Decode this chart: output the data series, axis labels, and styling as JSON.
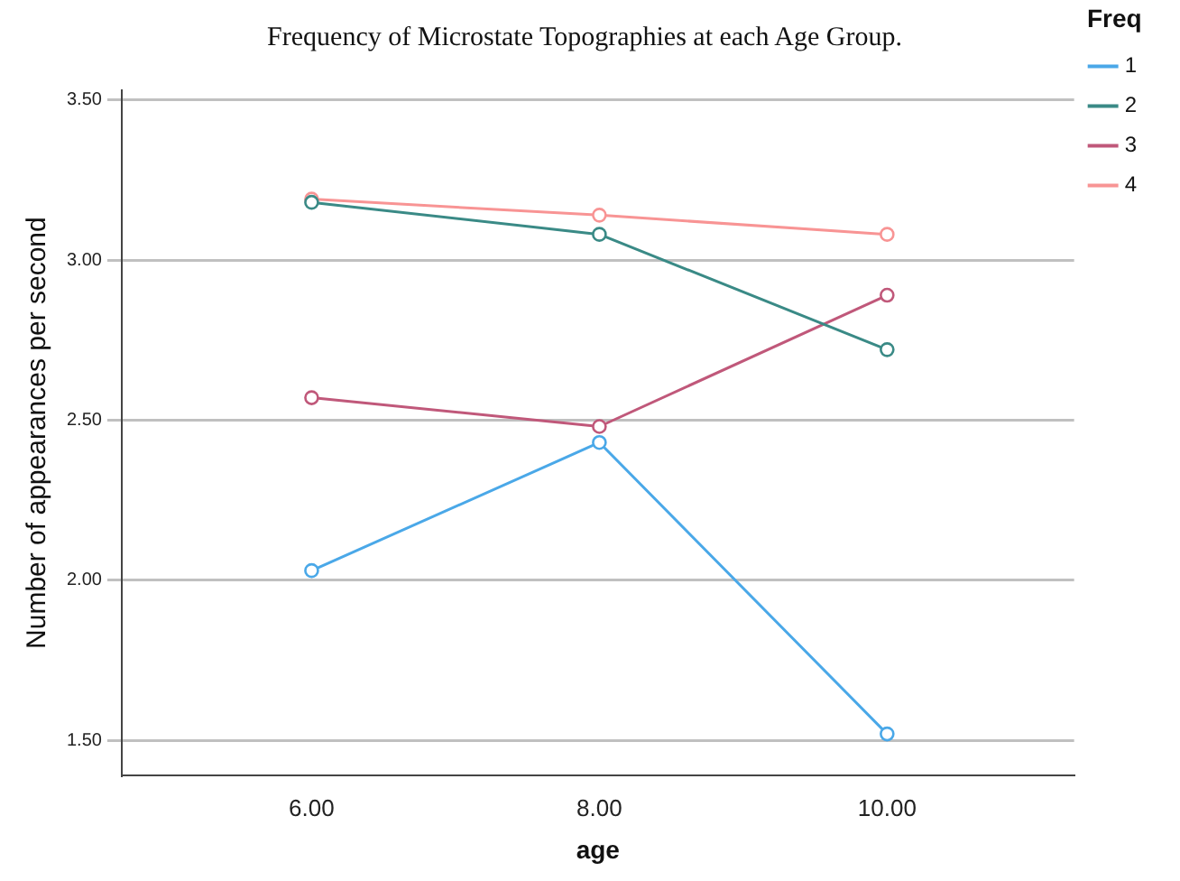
{
  "chart_data": {
    "type": "line",
    "title": "Frequency of Microstate Topographies at each Age Group.",
    "xlabel": "age",
    "ylabel": "Number of appearances per second",
    "legend_title": "Freq",
    "x": [
      6,
      8,
      10
    ],
    "series": [
      {
        "name": "1",
        "color": "#4aa8e8",
        "values": [
          2.03,
          2.43,
          1.52
        ]
      },
      {
        "name": "2",
        "color": "#3a8a86",
        "values": [
          3.18,
          3.08,
          2.72
        ]
      },
      {
        "name": "3",
        "color": "#c0587a",
        "values": [
          2.57,
          2.48,
          2.89
        ]
      },
      {
        "name": "4",
        "color": "#f89494",
        "values": [
          3.19,
          3.14,
          3.08
        ]
      }
    ],
    "xlim": [
      4.68,
      11.3
    ],
    "xticks": [
      {
        "value": 6,
        "label": "6.00"
      },
      {
        "value": 8,
        "label": "8.00"
      },
      {
        "value": 10,
        "label": "10.00"
      }
    ],
    "ylim": [
      1.39,
      3.53
    ],
    "yticks": [
      {
        "value": 1.5,
        "label": "1.50"
      },
      {
        "value": 2,
        "label": "2.00"
      },
      {
        "value": 2.5,
        "label": "2.50"
      },
      {
        "value": 3,
        "label": "3.00"
      },
      {
        "value": 3.5,
        "label": "3.50"
      }
    ],
    "grid": "y",
    "legend": "top right",
    "marker": "circle",
    "line_style": "solid"
  }
}
